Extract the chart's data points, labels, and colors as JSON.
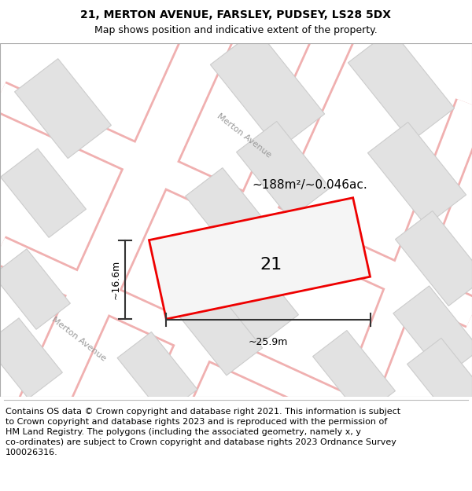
{
  "title": "21, MERTON AVENUE, FARSLEY, PUDSEY, LS28 5DX",
  "subtitle": "Map shows position and indicative extent of the property.",
  "footer_line1": "Contains OS data © Crown copyright and database right 2021. This information is subject",
  "footer_line2": "to Crown copyright and database rights 2023 and is reproduced with the permission of",
  "footer_line3": "HM Land Registry. The polygons (including the associated geometry, namely x, y",
  "footer_line4": "co-ordinates) are subject to Crown copyright and database rights 2023 Ordnance Survey",
  "footer_line5": "100026316.",
  "map_bg": "#f8f8f8",
  "road_fill": "#ffffff",
  "road_outline": "#f0b0b0",
  "building_fill": "#e2e2e2",
  "building_edge": "#cccccc",
  "plot_fill": "#f5f5f5",
  "plot_edge": "#ee0000",
  "plot_lw": 2.0,
  "number_label": "21",
  "area_label": "~188m²/~0.046ac.",
  "width_label": "~25.9m",
  "height_label": "~16.6m",
  "street_label": "Merton Avenue",
  "title_fontsize": 10,
  "subtitle_fontsize": 9,
  "footer_fontsize": 8,
  "number_fontsize": 16,
  "area_fontsize": 11,
  "dim_fontsize": 9
}
